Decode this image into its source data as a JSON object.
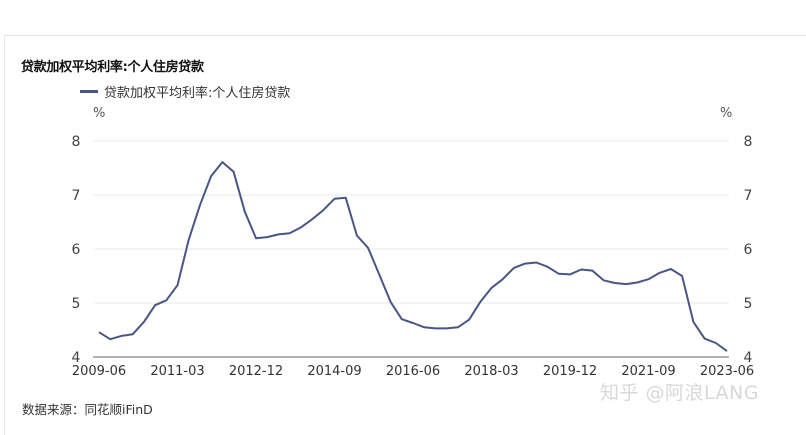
{
  "title": "贷款加权平均利率:个人住房贷款",
  "legend": {
    "label": "贷款加权平均利率:个人住房贷款",
    "color": "#4a5587"
  },
  "unit_left": "%",
  "unit_right": "%",
  "source": "数据来源：同花顺iFinD",
  "watermark": "知乎 @阿浪LANG",
  "chart_data": {
    "type": "line",
    "title": "贷款加权平均利率:个人住房贷款",
    "xlabel": "",
    "ylabel": "%",
    "ylim": [
      4,
      8
    ],
    "yticks": [
      4,
      5,
      6,
      7,
      8
    ],
    "grid": true,
    "legend_position": "top",
    "x_tick_labels": [
      "2009-06",
      "2011-03",
      "2012-12",
      "2014-09",
      "2016-06",
      "2018-03",
      "2019-12",
      "2021-09",
      "2023-06"
    ],
    "x": [
      "2009-06",
      "2009-09",
      "2009-12",
      "2010-03",
      "2010-06",
      "2010-09",
      "2010-12",
      "2011-03",
      "2011-06",
      "2011-09",
      "2011-12",
      "2012-03",
      "2012-06",
      "2012-09",
      "2012-12",
      "2013-03",
      "2013-06",
      "2013-09",
      "2013-12",
      "2014-03",
      "2014-06",
      "2014-09",
      "2014-12",
      "2015-03",
      "2015-06",
      "2015-09",
      "2015-12",
      "2016-03",
      "2016-06",
      "2016-09",
      "2016-12",
      "2017-03",
      "2017-06",
      "2017-09",
      "2017-12",
      "2018-03",
      "2018-06",
      "2018-09",
      "2018-12",
      "2019-03",
      "2019-06",
      "2019-09",
      "2019-12",
      "2020-03",
      "2020-06",
      "2020-09",
      "2020-12",
      "2021-03",
      "2021-06",
      "2021-09",
      "2021-12",
      "2022-03",
      "2022-06",
      "2022-09",
      "2022-12",
      "2023-03",
      "2023-06"
    ],
    "series": [
      {
        "name": "贷款加权平均利率:个人住房贷款",
        "color": "#4a5587",
        "values": [
          4.46,
          4.33,
          4.39,
          4.42,
          4.65,
          4.96,
          5.05,
          5.33,
          6.17,
          6.81,
          7.35,
          7.61,
          7.43,
          6.69,
          6.2,
          6.22,
          6.27,
          6.29,
          6.4,
          6.55,
          6.72,
          6.93,
          6.95,
          6.25,
          6.02,
          5.52,
          5.02,
          4.7,
          4.63,
          4.55,
          4.53,
          4.53,
          4.55,
          4.69,
          5.02,
          5.28,
          5.44,
          5.65,
          5.73,
          5.75,
          5.67,
          5.54,
          5.53,
          5.62,
          5.6,
          5.42,
          5.37,
          5.35,
          5.38,
          5.44,
          5.56,
          5.63,
          5.5,
          4.65,
          4.34,
          4.26,
          4.11
        ]
      }
    ]
  }
}
